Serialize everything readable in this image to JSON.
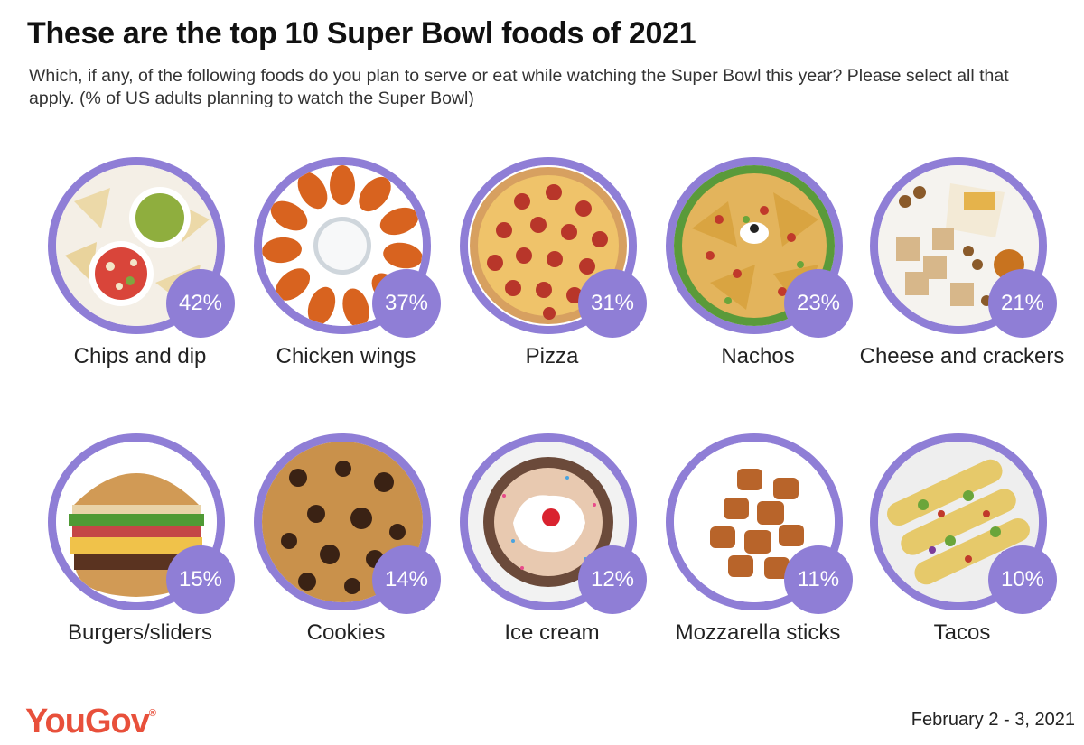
{
  "header": {
    "title": "These are the top 10 Super Bowl foods of 2021",
    "subtitle": "Which, if any, of the following foods do you plan to serve or eat while watching the Super Bowl this year? Please select all that apply. (% of US adults planning to watch the Super Bowl)"
  },
  "colors": {
    "accent": "#8f7ed6",
    "brand": "#e8503b"
  },
  "chart_data": {
    "type": "bar",
    "categories": [
      "Chips and dip",
      "Chicken wings",
      "Pizza",
      "Nachos",
      "Cheese and crackers",
      "Burgers/sliders",
      "Cookies",
      "Ice cream",
      "Mozzarella sticks",
      "Tacos"
    ],
    "values": [
      42,
      37,
      31,
      23,
      21,
      15,
      14,
      12,
      11,
      10
    ],
    "value_labels": [
      "42%",
      "37%",
      "31%",
      "23%",
      "21%",
      "15%",
      "14%",
      "12%",
      "11%",
      "10%"
    ],
    "unit": "%",
    "title": "These are the top 10 Super Bowl foods of 2021"
  },
  "items": [
    {
      "label": "Chips and dip",
      "value": "42%",
      "icon": "chips-and-dip-icon"
    },
    {
      "label": "Chicken wings",
      "value": "37%",
      "icon": "chicken-wings-icon"
    },
    {
      "label": "Pizza",
      "value": "31%",
      "icon": "pizza-icon"
    },
    {
      "label": "Nachos",
      "value": "23%",
      "icon": "nachos-icon"
    },
    {
      "label": "Cheese and crackers",
      "value": "21%",
      "icon": "cheese-and-crackers-icon"
    },
    {
      "label": "Burgers/sliders",
      "value": "15%",
      "icon": "burger-icon"
    },
    {
      "label": "Cookies",
      "value": "14%",
      "icon": "cookie-icon"
    },
    {
      "label": "Ice cream",
      "value": "12%",
      "icon": "ice-cream-icon"
    },
    {
      "label": "Mozzarella sticks",
      "value": "11%",
      "icon": "mozzarella-sticks-icon"
    },
    {
      "label": "Tacos",
      "value": "10%",
      "icon": "taco-icon"
    }
  ],
  "footer": {
    "logo": "YouGov",
    "logo_mark": "®",
    "date": "February 2 - 3, 2021"
  }
}
